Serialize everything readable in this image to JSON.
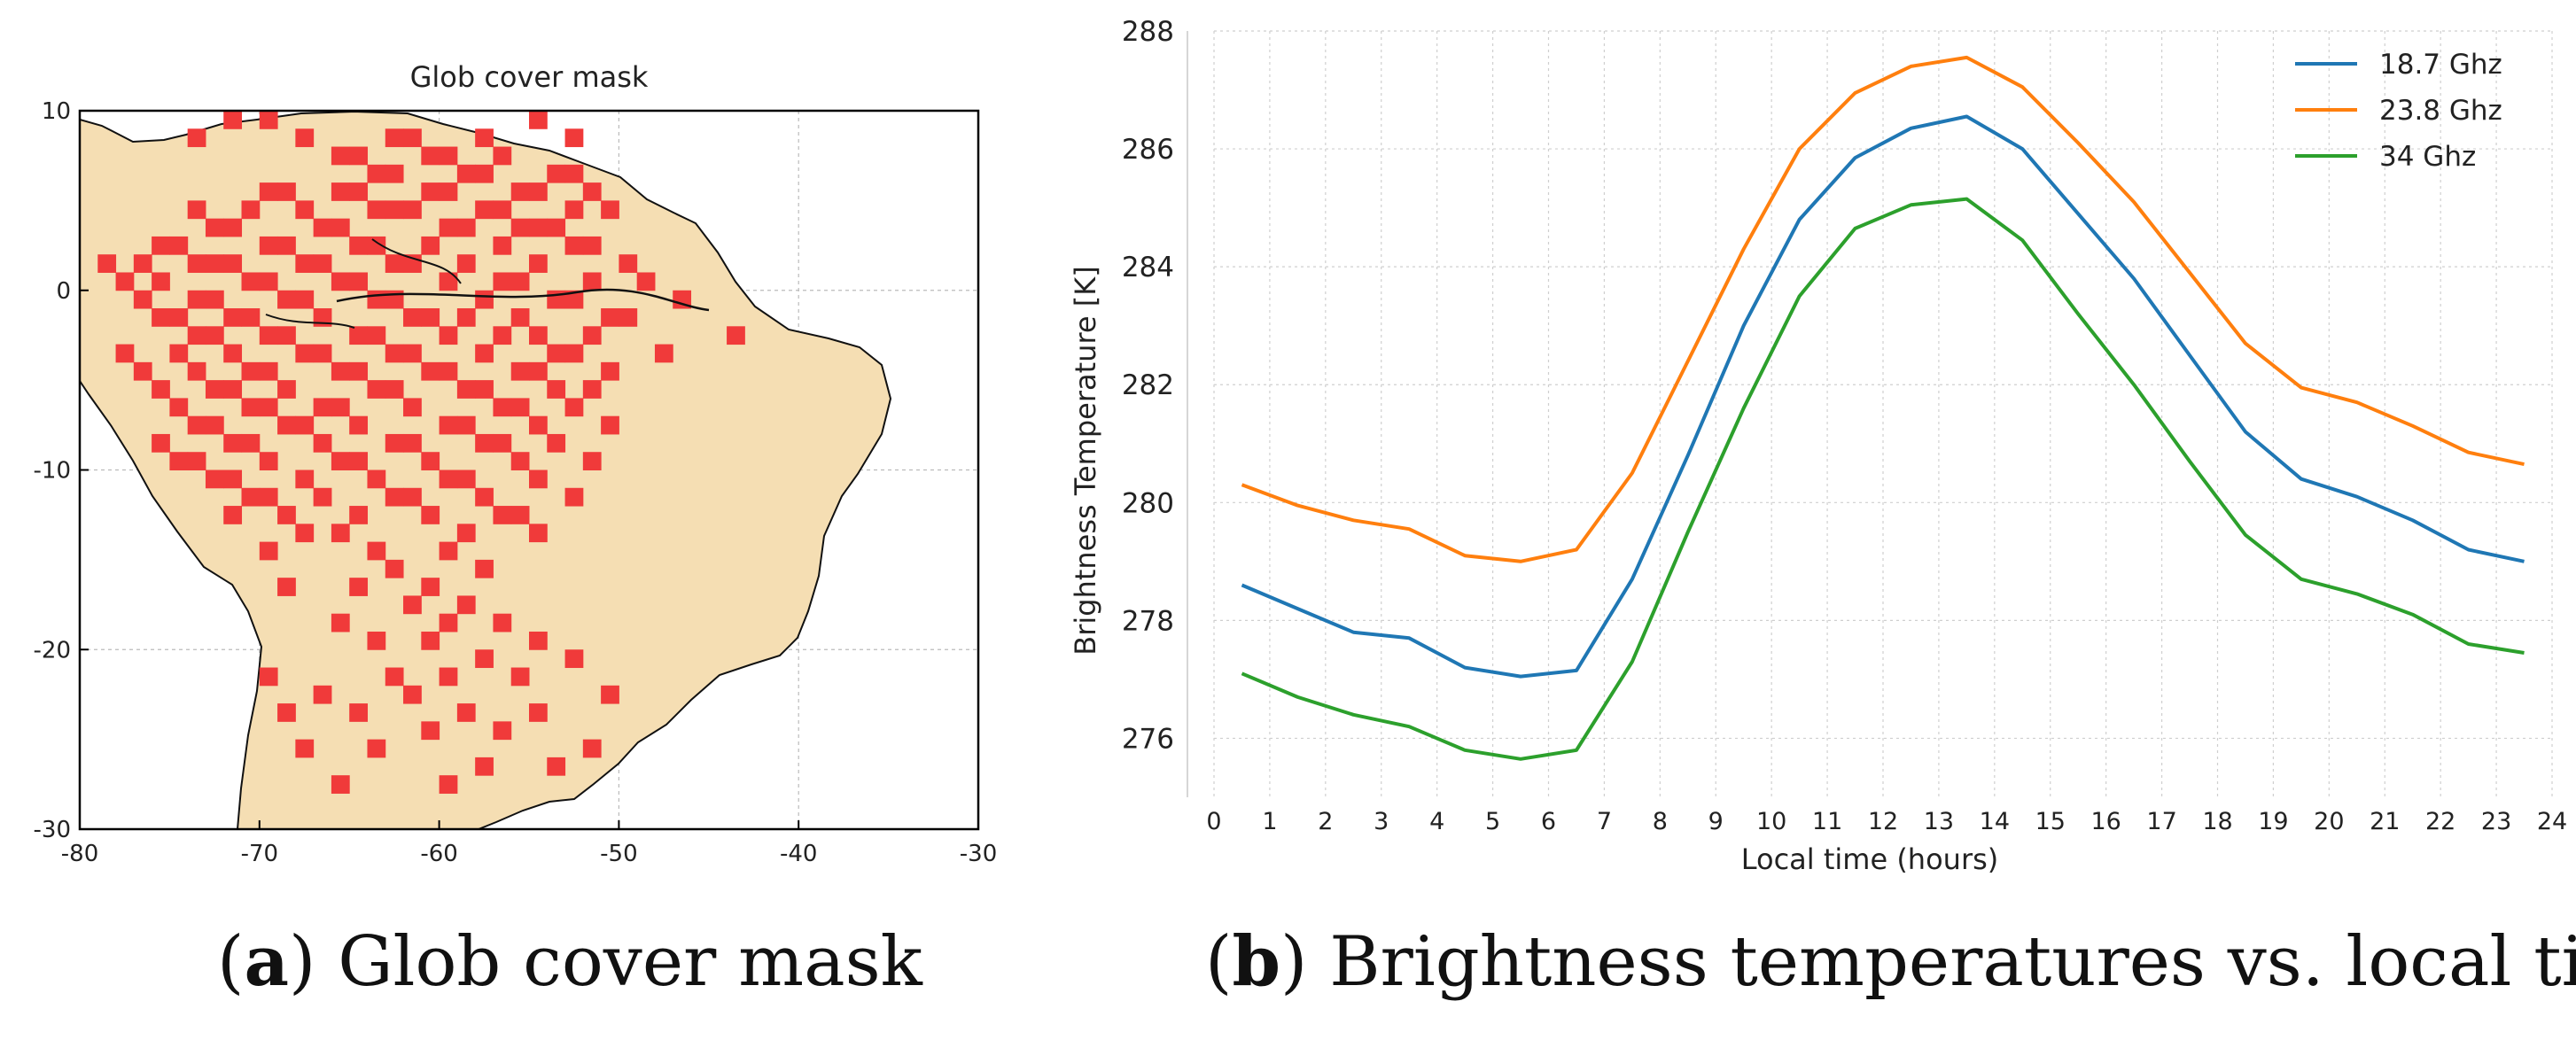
{
  "captions": {
    "a_letter": "a",
    "a_text": "Glob cover mask",
    "b_letter": "b",
    "b_text": "Brightness temperatures vs. local time"
  },
  "chart_data": [
    {
      "type": "heatmap",
      "title": "Glob cover mask",
      "xlabel": "",
      "ylabel": "",
      "xlim": [
        -80,
        -30
      ],
      "ylim": [
        -30,
        10
      ],
      "xticks": [
        -80,
        -70,
        -60,
        -50,
        -40,
        -30
      ],
      "yticks": [
        -30,
        -20,
        -10,
        0,
        10
      ],
      "grid": true,
      "colors": {
        "land": "#f5deb3",
        "mask": "#f03a3a",
        "coast": "#000000"
      },
      "cell_deg": 1,
      "mask_cells": [
        [
          -74,
          8
        ],
        [
          -72,
          9
        ],
        [
          -70,
          9
        ],
        [
          -68,
          8
        ],
        [
          -63,
          8
        ],
        [
          -62,
          8
        ],
        [
          -58,
          8
        ],
        [
          -55,
          9
        ],
        [
          -53,
          8
        ],
        [
          -66,
          7
        ],
        [
          -65,
          7
        ],
        [
          -61,
          7
        ],
        [
          -60,
          7
        ],
        [
          -57,
          7
        ],
        [
          -64,
          6
        ],
        [
          -63,
          6
        ],
        [
          -59,
          6
        ],
        [
          -58,
          6
        ],
        [
          -54,
          6
        ],
        [
          -53,
          6
        ],
        [
          -70,
          5
        ],
        [
          -69,
          5
        ],
        [
          -66,
          5
        ],
        [
          -65,
          5
        ],
        [
          -61,
          5
        ],
        [
          -60,
          5
        ],
        [
          -56,
          5
        ],
        [
          -55,
          5
        ],
        [
          -52,
          5
        ],
        [
          -74,
          4
        ],
        [
          -71,
          4
        ],
        [
          -68,
          4
        ],
        [
          -64,
          4
        ],
        [
          -63,
          4
        ],
        [
          -62,
          4
        ],
        [
          -58,
          4
        ],
        [
          -57,
          4
        ],
        [
          -53,
          4
        ],
        [
          -51,
          4
        ],
        [
          -73,
          3
        ],
        [
          -72,
          3
        ],
        [
          -67,
          3
        ],
        [
          -66,
          3
        ],
        [
          -60,
          3
        ],
        [
          -59,
          3
        ],
        [
          -56,
          3
        ],
        [
          -55,
          3
        ],
        [
          -54,
          3
        ],
        [
          -76,
          2
        ],
        [
          -75,
          2
        ],
        [
          -70,
          2
        ],
        [
          -69,
          2
        ],
        [
          -65,
          2
        ],
        [
          -64,
          2
        ],
        [
          -61,
          2
        ],
        [
          -57,
          2
        ],
        [
          -53,
          2
        ],
        [
          -52,
          2
        ],
        [
          -79,
          1
        ],
        [
          -77,
          1
        ],
        [
          -74,
          1
        ],
        [
          -73,
          1
        ],
        [
          -72,
          1
        ],
        [
          -68,
          1
        ],
        [
          -67,
          1
        ],
        [
          -63,
          1
        ],
        [
          -62,
          1
        ],
        [
          -59,
          1
        ],
        [
          -55,
          1
        ],
        [
          -50,
          1
        ],
        [
          -78,
          0
        ],
        [
          -76,
          0
        ],
        [
          -71,
          0
        ],
        [
          -70,
          0
        ],
        [
          -66,
          0
        ],
        [
          -65,
          0
        ],
        [
          -60,
          0
        ],
        [
          -57,
          0
        ],
        [
          -56,
          0
        ],
        [
          -52,
          0
        ],
        [
          -49,
          0
        ],
        [
          -77,
          -1
        ],
        [
          -74,
          -1
        ],
        [
          -73,
          -1
        ],
        [
          -69,
          -1
        ],
        [
          -68,
          -1
        ],
        [
          -64,
          -1
        ],
        [
          -63,
          -1
        ],
        [
          -58,
          -1
        ],
        [
          -54,
          -1
        ],
        [
          -53,
          -1
        ],
        [
          -47,
          -1
        ],
        [
          -76,
          -2
        ],
        [
          -75,
          -2
        ],
        [
          -72,
          -2
        ],
        [
          -71,
          -2
        ],
        [
          -67,
          -2
        ],
        [
          -62,
          -2
        ],
        [
          -61,
          -2
        ],
        [
          -59,
          -2
        ],
        [
          -56,
          -2
        ],
        [
          -51,
          -2
        ],
        [
          -50,
          -2
        ],
        [
          -74,
          -3
        ],
        [
          -73,
          -3
        ],
        [
          -70,
          -3
        ],
        [
          -69,
          -3
        ],
        [
          -65,
          -3
        ],
        [
          -64,
          -3
        ],
        [
          -60,
          -3
        ],
        [
          -57,
          -3
        ],
        [
          -55,
          -3
        ],
        [
          -52,
          -3
        ],
        [
          -44,
          -3
        ],
        [
          -78,
          -4
        ],
        [
          -75,
          -4
        ],
        [
          -72,
          -4
        ],
        [
          -68,
          -4
        ],
        [
          -67,
          -4
        ],
        [
          -63,
          -4
        ],
        [
          -62,
          -4
        ],
        [
          -58,
          -4
        ],
        [
          -54,
          -4
        ],
        [
          -53,
          -4
        ],
        [
          -48,
          -4
        ],
        [
          -77,
          -5
        ],
        [
          -74,
          -5
        ],
        [
          -71,
          -5
        ],
        [
          -70,
          -5
        ],
        [
          -66,
          -5
        ],
        [
          -65,
          -5
        ],
        [
          -61,
          -5
        ],
        [
          -60,
          -5
        ],
        [
          -56,
          -5
        ],
        [
          -55,
          -5
        ],
        [
          -51,
          -5
        ],
        [
          -76,
          -6
        ],
        [
          -73,
          -6
        ],
        [
          -72,
          -6
        ],
        [
          -69,
          -6
        ],
        [
          -64,
          -6
        ],
        [
          -63,
          -6
        ],
        [
          -59,
          -6
        ],
        [
          -58,
          -6
        ],
        [
          -54,
          -6
        ],
        [
          -52,
          -6
        ],
        [
          -75,
          -7
        ],
        [
          -71,
          -7
        ],
        [
          -70,
          -7
        ],
        [
          -67,
          -7
        ],
        [
          -66,
          -7
        ],
        [
          -62,
          -7
        ],
        [
          -57,
          -7
        ],
        [
          -56,
          -7
        ],
        [
          -53,
          -7
        ],
        [
          -74,
          -8
        ],
        [
          -73,
          -8
        ],
        [
          -69,
          -8
        ],
        [
          -68,
          -8
        ],
        [
          -65,
          -8
        ],
        [
          -60,
          -8
        ],
        [
          -59,
          -8
        ],
        [
          -55,
          -8
        ],
        [
          -51,
          -8
        ],
        [
          -76,
          -9
        ],
        [
          -72,
          -9
        ],
        [
          -71,
          -9
        ],
        [
          -67,
          -9
        ],
        [
          -63,
          -9
        ],
        [
          -62,
          -9
        ],
        [
          -58,
          -9
        ],
        [
          -57,
          -9
        ],
        [
          -54,
          -9
        ],
        [
          -75,
          -10
        ],
        [
          -74,
          -10
        ],
        [
          -70,
          -10
        ],
        [
          -66,
          -10
        ],
        [
          -65,
          -10
        ],
        [
          -61,
          -10
        ],
        [
          -56,
          -10
        ],
        [
          -52,
          -10
        ],
        [
          -73,
          -11
        ],
        [
          -72,
          -11
        ],
        [
          -68,
          -11
        ],
        [
          -64,
          -11
        ],
        [
          -60,
          -11
        ],
        [
          -59,
          -11
        ],
        [
          -55,
          -11
        ],
        [
          -71,
          -12
        ],
        [
          -70,
          -12
        ],
        [
          -67,
          -12
        ],
        [
          -63,
          -12
        ],
        [
          -62,
          -12
        ],
        [
          -58,
          -12
        ],
        [
          -53,
          -12
        ],
        [
          -72,
          -13
        ],
        [
          -69,
          -13
        ],
        [
          -65,
          -13
        ],
        [
          -61,
          -13
        ],
        [
          -57,
          -13
        ],
        [
          -56,
          -13
        ],
        [
          -68,
          -14
        ],
        [
          -66,
          -14
        ],
        [
          -59,
          -14
        ],
        [
          -55,
          -14
        ],
        [
          -70,
          -15
        ],
        [
          -64,
          -15
        ],
        [
          -60,
          -15
        ],
        [
          -63,
          -16
        ],
        [
          -58,
          -16
        ],
        [
          -69,
          -17
        ],
        [
          -65,
          -17
        ],
        [
          -61,
          -17
        ],
        [
          -62,
          -18
        ],
        [
          -59,
          -18
        ],
        [
          -66,
          -19
        ],
        [
          -60,
          -19
        ],
        [
          -57,
          -19
        ],
        [
          -64,
          -20
        ],
        [
          -61,
          -20
        ],
        [
          -55,
          -20
        ],
        [
          -58,
          -21
        ],
        [
          -53,
          -21
        ],
        [
          -70,
          -22
        ],
        [
          -63,
          -22
        ],
        [
          -60,
          -22
        ],
        [
          -56,
          -22
        ],
        [
          -67,
          -23
        ],
        [
          -62,
          -23
        ],
        [
          -51,
          -23
        ],
        [
          -69,
          -24
        ],
        [
          -65,
          -24
        ],
        [
          -59,
          -24
        ],
        [
          -55,
          -24
        ],
        [
          -61,
          -25
        ],
        [
          -57,
          -25
        ],
        [
          -68,
          -26
        ],
        [
          -64,
          -26
        ],
        [
          -52,
          -26
        ],
        [
          -58,
          -27
        ],
        [
          -54,
          -27
        ],
        [
          -66,
          -28
        ],
        [
          -60,
          -28
        ]
      ]
    },
    {
      "type": "line",
      "title": "",
      "xlabel": "Local time (hours)",
      "ylabel": "Brightness Temperature [K]",
      "xlim": [
        0,
        24
      ],
      "ylim": [
        275,
        288
      ],
      "xticks": [
        0,
        1,
        2,
        3,
        4,
        5,
        6,
        7,
        8,
        9,
        10,
        11,
        12,
        13,
        14,
        15,
        16,
        17,
        18,
        19,
        20,
        21,
        22,
        23,
        24
      ],
      "yticks": [
        276,
        278,
        280,
        282,
        284,
        286,
        288
      ],
      "grid": true,
      "legend_position": "top-right",
      "x": [
        0.5,
        1.5,
        2.5,
        3.5,
        4.5,
        5.5,
        6.5,
        7.5,
        8.5,
        9.5,
        10.5,
        11.5,
        12.5,
        13.5,
        14.5,
        15.5,
        16.5,
        17.5,
        18.5,
        19.5,
        20.5,
        21.5,
        22.5,
        23.5
      ],
      "series": [
        {
          "name": "18.7 Ghz",
          "color": "#1f77b4",
          "values": [
            278.6,
            278.2,
            277.8,
            277.7,
            277.2,
            277.05,
            277.15,
            278.7,
            280.8,
            283.0,
            284.8,
            285.85,
            286.35,
            286.55,
            286.0,
            284.9,
            283.8,
            282.5,
            281.2,
            280.4,
            280.1,
            279.7,
            279.2,
            279.0
          ]
        },
        {
          "name": "23.8 Ghz",
          "color": "#ff7f0e",
          "values": [
            280.3,
            279.95,
            279.7,
            279.55,
            279.1,
            279.0,
            279.2,
            280.5,
            282.4,
            284.3,
            286.0,
            286.95,
            287.4,
            287.55,
            287.05,
            286.1,
            285.1,
            283.9,
            282.7,
            281.95,
            281.7,
            281.3,
            280.85,
            280.65
          ]
        },
        {
          "name": "34 Ghz",
          "color": "#2ca02c",
          "values": [
            277.1,
            276.7,
            276.4,
            276.2,
            275.8,
            275.65,
            275.8,
            277.3,
            279.5,
            281.6,
            283.5,
            284.65,
            285.05,
            285.15,
            284.45,
            283.2,
            282.0,
            280.7,
            279.45,
            278.7,
            278.45,
            278.1,
            277.6,
            277.45
          ]
        }
      ]
    }
  ]
}
